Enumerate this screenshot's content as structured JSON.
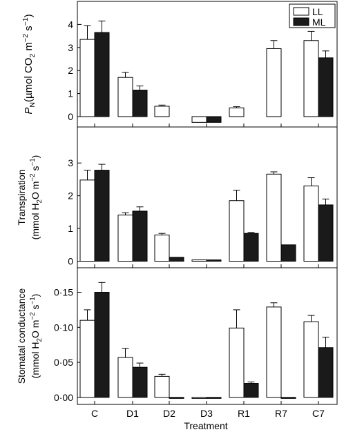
{
  "legend": {
    "position": "top-right",
    "entries": [
      {
        "label": "LL",
        "color": "#ffffff"
      },
      {
        "label": "ML",
        "color": "#1a1a1a"
      }
    ]
  },
  "chart_data": [
    {
      "type": "bar",
      "panel": "top",
      "categories": [
        "C",
        "D1",
        "D2",
        "D3",
        "R1",
        "R7",
        "C7"
      ],
      "series": [
        {
          "name": "LL",
          "color": "#ffffff",
          "values": [
            3.35,
            1.7,
            0.45,
            -0.25,
            0.38,
            null,
            3.3
          ],
          "errors": [
            0.6,
            0.22,
            0.05,
            0,
            0.05,
            null,
            0.4
          ]
        },
        {
          "name": "ML",
          "color": "#1a1a1a",
          "values": [
            3.65,
            1.15,
            null,
            -0.25,
            null,
            null,
            2.55
          ],
          "errors": [
            0.5,
            0.18,
            null,
            0,
            null,
            null,
            0.3
          ]
        },
        {
          "name": "LL",
          "color": "#ffffff",
          "values": [
            null,
            null,
            null,
            null,
            null,
            2.95,
            null
          ],
          "errors": [
            null,
            null,
            null,
            null,
            null,
            0.35,
            null
          ]
        }
      ],
      "ylabel": {
        "pre": "P",
        "sub": "N",
        "post": "(µmol CO",
        "sub2": "2",
        "mid": " m",
        "sup": "−2",
        "tail": " s",
        "sup2": "−1",
        "end": ")"
      },
      "yticks": [
        "0",
        "1",
        "2",
        "3",
        "4"
      ],
      "ylim": [
        -0.45,
        5.0
      ]
    },
    {
      "type": "bar",
      "panel": "middle",
      "categories": [
        "C",
        "D1",
        "D2",
        "D3",
        "R1",
        "R7",
        "C7"
      ],
      "series": [
        {
          "name": "LL",
          "color": "#ffffff",
          "values": [
            2.48,
            1.41,
            0.8,
            0.04,
            1.85,
            2.66,
            2.3
          ],
          "errors": [
            0.3,
            0.07,
            0.05,
            0,
            0.32,
            0.07,
            0.25
          ]
        },
        {
          "name": "ML",
          "color": "#1a1a1a",
          "values": [
            2.78,
            1.53,
            0.12,
            0.04,
            0.85,
            0.5,
            1.72
          ],
          "errors": [
            0.18,
            0.13,
            0,
            0,
            0.03,
            0,
            0.18
          ]
        }
      ],
      "ylabel_line1": "Transpiration",
      "ylabel_line2": {
        "pre": "(mmol H",
        "sub": "2",
        "mid": "O m",
        "sup": "−2",
        "tail": " s",
        "sup2": "−1",
        "end": ")"
      },
      "yticks": [
        "0",
        "1",
        "2",
        "3"
      ],
      "ylim": [
        -0.2,
        4.1
      ]
    },
    {
      "type": "bar",
      "panel": "bottom",
      "categories": [
        "C",
        "D1",
        "D2",
        "D3",
        "R1",
        "R7",
        "C7"
      ],
      "series": [
        {
          "name": "LL",
          "color": "#ffffff",
          "values": [
            0.11,
            0.057,
            0.03,
            0.0,
            0.099,
            0.129,
            0.108
          ],
          "errors": [
            0.015,
            0.013,
            0.003,
            0,
            0.026,
            0.006,
            0.009
          ]
        },
        {
          "name": "ML",
          "color": "#1a1a1a",
          "values": [
            0.15,
            0.043,
            0.0,
            0.0,
            0.02,
            0.0,
            0.071
          ],
          "errors": [
            0.014,
            0.006,
            0,
            0,
            0.002,
            0,
            0.015
          ]
        }
      ],
      "ylabel_line1": "Stomatal conductance",
      "ylabel_line2": {
        "pre": "(mmol H",
        "sub": "2",
        "mid": "O m",
        "sup": "−2",
        "tail": " s",
        "sup2": "−1",
        "end": ")"
      },
      "yticks": [
        "0·00",
        "0·05",
        "0·10",
        "0·15"
      ],
      "ytick_values": [
        0.0,
        0.05,
        0.1,
        0.15
      ],
      "ylim": [
        -0.01,
        0.185
      ]
    }
  ],
  "xlabel": "Treatment"
}
